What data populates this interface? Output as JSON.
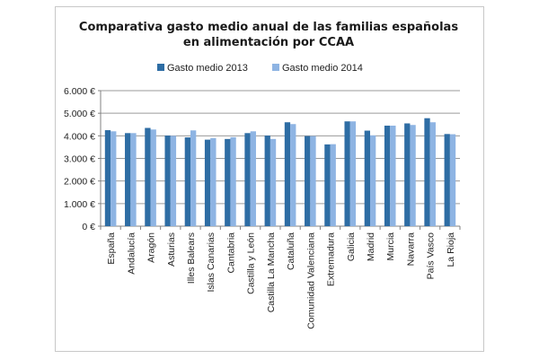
{
  "chart_data": {
    "type": "bar",
    "title": [
      "Comparativa gasto medio anual de las familias españolas",
      "en alimentación por CCAA"
    ],
    "xlabel": "",
    "ylabel": "",
    "ylim": [
      0,
      6000
    ],
    "yticks": [
      0,
      1000,
      2000,
      3000,
      4000,
      5000,
      6000
    ],
    "ytick_labels": [
      "0 €",
      "1.000 €",
      "2.000 €",
      "3.000 €",
      "4.000 €",
      "5.000 €",
      "6.000 €"
    ],
    "grid": true,
    "legend_position": "top",
    "categories": [
      "España",
      "Andalucía",
      "Aragón",
      "Asturias",
      "Illes Balears",
      "Islas Canarias",
      "Cantabria",
      "Castilla y León",
      "Castilla La Mancha",
      "Cataluña",
      "Comunidad Valenciana",
      "Extremadura",
      "Galicia",
      "Madrid",
      "Murcia",
      "Navarra",
      "País Vasco",
      "La Rioja"
    ],
    "series": [
      {
        "name": "Gasto medio 2013",
        "color": "#2e6da4",
        "values": [
          4250,
          4120,
          4350,
          4010,
          3930,
          3830,
          3860,
          4120,
          4010,
          4600,
          3990,
          3620,
          4640,
          4230,
          4450,
          4550,
          4780,
          4080
        ]
      },
      {
        "name": "Gasto medio 2014",
        "color": "#8eb4e3",
        "values": [
          4200,
          4120,
          4280,
          4000,
          4240,
          3900,
          3940,
          4200,
          3860,
          4520,
          3990,
          3630,
          4640,
          4020,
          4450,
          4480,
          4600,
          4070
        ]
      }
    ]
  }
}
